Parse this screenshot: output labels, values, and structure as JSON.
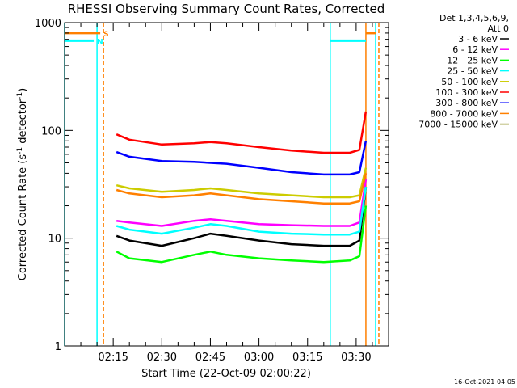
{
  "chart_data": {
    "type": "line",
    "title": "RHESSI Observing Summary Count Rates, Corrected",
    "xlabel": "Start Time (22-Oct-09 02:00:22)",
    "ylabel_main": "Corrected Count Rate (s",
    "ylabel_sup1": "-1",
    "ylabel_mid": " detector",
    "ylabel_sup2": "-1",
    "ylabel_end": ")",
    "yscale": "log",
    "ylim": [
      1,
      1000
    ],
    "xlim": [
      "02:00",
      "03:40"
    ],
    "x_ticks": [
      "02:15",
      "02:30",
      "02:45",
      "03:00",
      "03:15",
      "03:30"
    ],
    "y_ticks": [
      "1",
      "10",
      "100",
      "1000"
    ],
    "legend_header": [
      "Det 1,3,4,5,6,9,",
      "Att 0"
    ],
    "series": [
      {
        "name": "3 - 6 keV",
        "color": "#000000",
        "x": [
          "02:16",
          "02:20",
          "02:30",
          "02:40",
          "02:45",
          "02:50",
          "03:00",
          "03:10",
          "03:20",
          "03:28",
          "03:31",
          "03:33"
        ],
        "values": [
          10.5,
          9.5,
          8.5,
          10.0,
          11.0,
          10.5,
          9.5,
          8.8,
          8.5,
          8.5,
          9.5,
          30
        ]
      },
      {
        "name": "6 - 12 keV",
        "color": "#ff00ff",
        "x": [
          "02:16",
          "02:20",
          "02:30",
          "02:40",
          "02:45",
          "02:50",
          "03:00",
          "03:10",
          "03:20",
          "03:28",
          "03:31",
          "03:33"
        ],
        "values": [
          14.5,
          14.0,
          13.0,
          14.5,
          15.0,
          14.5,
          13.5,
          13.2,
          13.0,
          13.0,
          14.0,
          35
        ]
      },
      {
        "name": "12 - 25 keV",
        "color": "#00ff00",
        "x": [
          "02:16",
          "02:20",
          "02:30",
          "02:40",
          "02:45",
          "02:50",
          "03:00",
          "03:10",
          "03:20",
          "03:28",
          "03:31",
          "03:33"
        ],
        "values": [
          7.5,
          6.5,
          6.0,
          7.0,
          7.5,
          7.0,
          6.5,
          6.2,
          6.0,
          6.2,
          6.8,
          20
        ]
      },
      {
        "name": "25 - 50 keV",
        "color": "#00ffff",
        "x": [
          "02:16",
          "02:20",
          "02:30",
          "02:40",
          "02:45",
          "02:50",
          "03:00",
          "03:10",
          "03:20",
          "03:28",
          "03:31",
          "03:33"
        ],
        "values": [
          13.0,
          12.0,
          11.0,
          12.5,
          13.5,
          13.0,
          11.5,
          11.0,
          10.8,
          10.8,
          11.5,
          30
        ]
      },
      {
        "name": "50 - 100 keV",
        "color": "#cccc00",
        "x": [
          "02:16",
          "02:20",
          "02:30",
          "02:40",
          "02:45",
          "02:50",
          "03:00",
          "03:10",
          "03:20",
          "03:28",
          "03:31",
          "03:33"
        ],
        "values": [
          31,
          29,
          27,
          28,
          29,
          28,
          26,
          25,
          24,
          24,
          25,
          45
        ]
      },
      {
        "name": "100 - 300 keV",
        "color": "#ff0000",
        "x": [
          "02:16",
          "02:20",
          "02:30",
          "02:40",
          "02:45",
          "02:50",
          "03:00",
          "03:10",
          "03:20",
          "03:28",
          "03:31",
          "03:33"
        ],
        "values": [
          92,
          82,
          74,
          76,
          78,
          76,
          70,
          65,
          62,
          62,
          66,
          150
        ]
      },
      {
        "name": "300 - 800 keV",
        "color": "#0000ff",
        "x": [
          "02:16",
          "02:20",
          "02:30",
          "02:40",
          "02:45",
          "02:50",
          "03:00",
          "03:10",
          "03:20",
          "03:28",
          "03:31",
          "03:33"
        ],
        "values": [
          63,
          57,
          52,
          51,
          50,
          49,
          45,
          41,
          39,
          39,
          41,
          80
        ]
      },
      {
        "name": "800 - 7000 keV",
        "color": "#ff8000",
        "x": [
          "02:16",
          "02:20",
          "02:30",
          "02:40",
          "02:45",
          "02:50",
          "03:00",
          "03:10",
          "03:20",
          "03:28",
          "03:31",
          "03:33"
        ],
        "values": [
          28,
          26,
          24,
          25,
          26,
          25,
          23,
          22,
          21,
          21,
          22,
          40
        ]
      },
      {
        "name": "7000 - 15000 keV",
        "color": "#808000",
        "x": [],
        "values": []
      }
    ],
    "flags": [
      {
        "letter": "S",
        "color": "#ff8000",
        "segments": [
          [
            "02:00",
            "02:11"
          ],
          [
            "03:33",
            "03:36"
          ]
        ],
        "level": 800
      },
      {
        "letter": "N",
        "color": "#00ffff",
        "segments": [
          [
            "02:00",
            "02:09"
          ],
          [
            "03:22",
            "03:33"
          ]
        ],
        "level": 680
      }
    ],
    "vlines": [
      {
        "x": "02:00",
        "color": "#00ffff",
        "dash": false
      },
      {
        "x": "02:10",
        "color": "#00ffff",
        "dash": false
      },
      {
        "x": "02:12",
        "color": "#ff8000",
        "dash": true
      },
      {
        "x": "03:22",
        "color": "#00ffff",
        "dash": false
      },
      {
        "x": "03:33",
        "color": "#ff8000",
        "dash": false
      },
      {
        "x": "03:36",
        "color": "#00ffff",
        "dash": false
      },
      {
        "x": "03:37",
        "color": "#ff8000",
        "dash": true
      }
    ],
    "footer": "16-Oct-2021 04:05"
  }
}
